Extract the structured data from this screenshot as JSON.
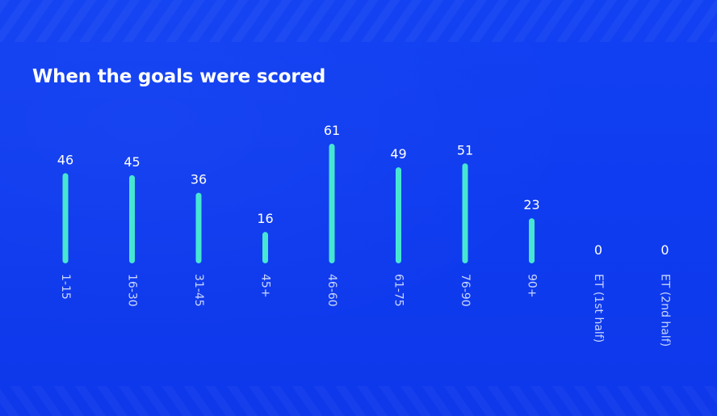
{
  "page": {
    "title": "When the goals were scored"
  },
  "colors": {
    "background": "#0f3cf0",
    "bar": "#47e6d3",
    "text": "#ffffff",
    "category_text": "#c9d6ff"
  },
  "chart_data": {
    "type": "bar",
    "title": "When the goals were scored",
    "categories": [
      "1-15",
      "16-30",
      "31-45",
      "45+",
      "46-60",
      "61-75",
      "76-90",
      "90+",
      "ET (1st half)",
      "ET (2nd half)"
    ],
    "values": [
      46,
      45,
      36,
      16,
      61,
      49,
      51,
      23,
      0,
      0
    ],
    "ylim": [
      0,
      61
    ],
    "grid": false,
    "legend": "none",
    "value_labels": true,
    "orientation": "vertical"
  }
}
